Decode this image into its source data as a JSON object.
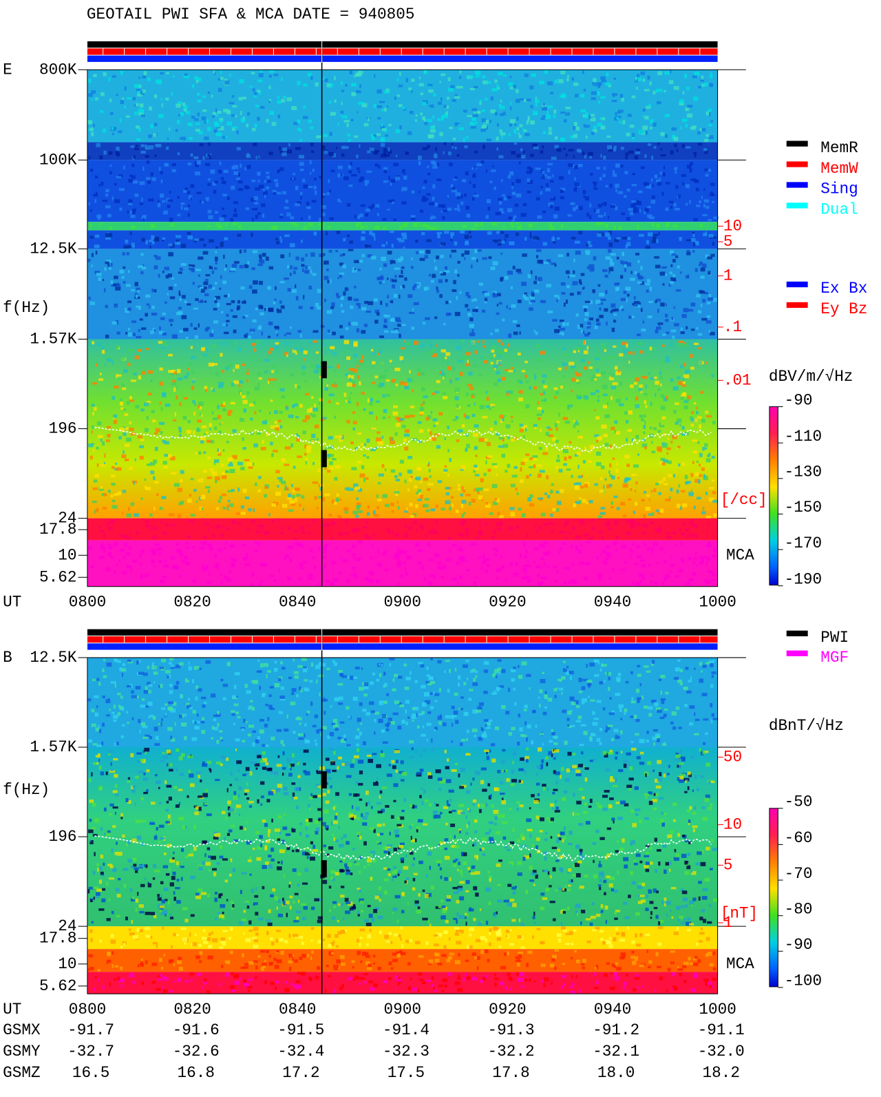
{
  "title": "GEOTAIL  PWI SFA & MCA   DATE = 940805",
  "panels": [
    {
      "label": "E",
      "ylabel": "f(Hz)",
      "freq_ticks": [
        "800K",
        "100K",
        "12.5K",
        "1.57K",
        "196",
        "24",
        "17.8",
        "10",
        "5.62"
      ],
      "right_ticks": [
        "10",
        "5",
        "1",
        ".1",
        ".01",
        "[/cc]"
      ],
      "right_label": "MCA",
      "units": "dBV/m/√Hz",
      "colorbar_ticks": [
        "-90",
        "-110",
        "-130",
        "-150",
        "-170",
        "-190"
      ],
      "time_label": "UT",
      "time_ticks": [
        "0800",
        "0820",
        "0840",
        "0900",
        "0920",
        "0940",
        "1000"
      ]
    },
    {
      "label": "B",
      "ylabel": "f(Hz)",
      "freq_ticks": [
        "12.5K",
        "1.57K",
        "196",
        "24",
        "17.8",
        "10",
        "5.62"
      ],
      "right_ticks": [
        "50",
        "10",
        "5",
        "1",
        "[nT]"
      ],
      "right_label": "MCA",
      "units": "dBnT/√Hz",
      "colorbar_ticks": [
        "-50",
        "-60",
        "-70",
        "-80",
        "-90",
        "-100"
      ],
      "time_label": "UT",
      "time_ticks": [
        "0800",
        "0820",
        "0840",
        "0900",
        "0920",
        "0940",
        "1000"
      ]
    }
  ],
  "legends": {
    "status": [
      {
        "name": "MemR",
        "color": "#000000"
      },
      {
        "name": "MemW",
        "color": "#ff0000"
      },
      {
        "name": "Sing",
        "color": "#0000ff"
      },
      {
        "name": "Dual",
        "color": "#00ffff"
      }
    ],
    "antenna": [
      {
        "name": "Ex Bx",
        "color": "#0000ff"
      },
      {
        "name": "Ey Bz",
        "color": "#ff0000"
      }
    ],
    "source": [
      {
        "name": "PWI",
        "color": "#000000"
      },
      {
        "name": "MGF",
        "color": "#ff00ff"
      }
    ]
  },
  "orbit": [
    {
      "label": "GSMX",
      "values": [
        "-91.7",
        "-91.6",
        "-91.5",
        "-91.4",
        "-91.3",
        "-91.2",
        "-91.1"
      ]
    },
    {
      "label": "GSMY",
      "values": [
        "-32.7",
        "-32.6",
        "-32.4",
        "-32.3",
        "-32.2",
        "-32.1",
        "-32.0"
      ]
    },
    {
      "label": "GSMZ",
      "values": [
        "16.5",
        "16.8",
        "17.2",
        "17.5",
        "17.8",
        "18.0",
        "18.2"
      ]
    }
  ]
}
